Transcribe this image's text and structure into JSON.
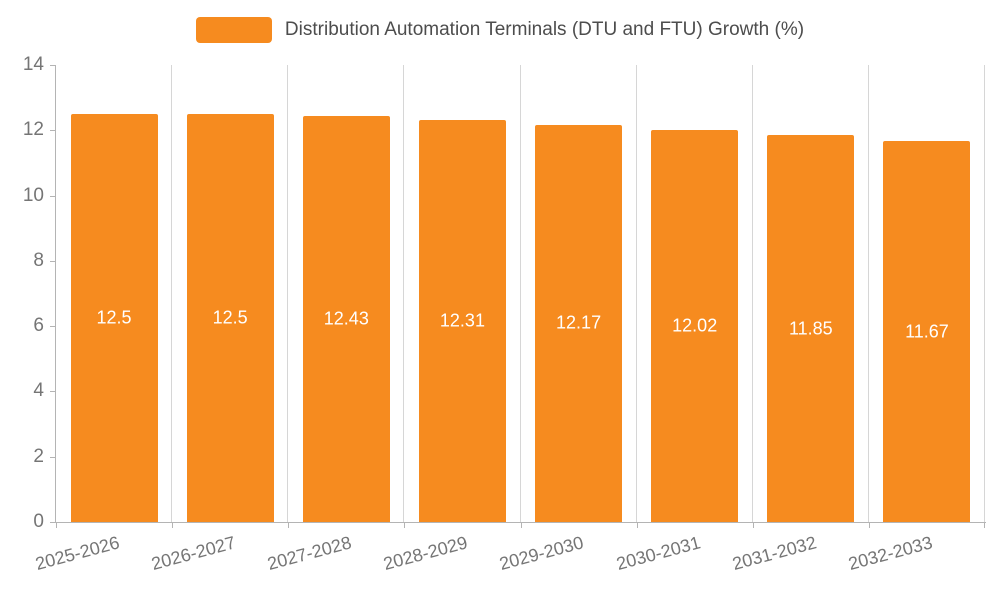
{
  "legend": {
    "label": "Distribution Automation Terminals (DTU and FTU) Growth (%)",
    "swatch_color": "#f68b1f"
  },
  "chart_data": {
    "type": "bar",
    "title": "Distribution Automation Terminals (DTU and FTU) Growth (%)",
    "categories": [
      "2025-2026",
      "2026-2027",
      "2027-2028",
      "2028-2029",
      "2029-2030",
      "2030-2031",
      "2031-2032",
      "2032-2033"
    ],
    "values": [
      12.5,
      12.5,
      12.43,
      12.31,
      12.17,
      12.02,
      11.85,
      11.67
    ],
    "xlabel": "",
    "ylabel": "",
    "ylim": [
      0,
      14
    ],
    "yticks": [
      0,
      2,
      4,
      6,
      8,
      10,
      12,
      14
    ],
    "grid": true,
    "grid_lines": "vertical",
    "legend_position": "top-center",
    "bar_color": "#f68b1f",
    "value_label_color": "#ffffff",
    "value_label_position": "inside-center",
    "axis_color": "#b4b4b4",
    "tick_label_color": "#757575"
  }
}
